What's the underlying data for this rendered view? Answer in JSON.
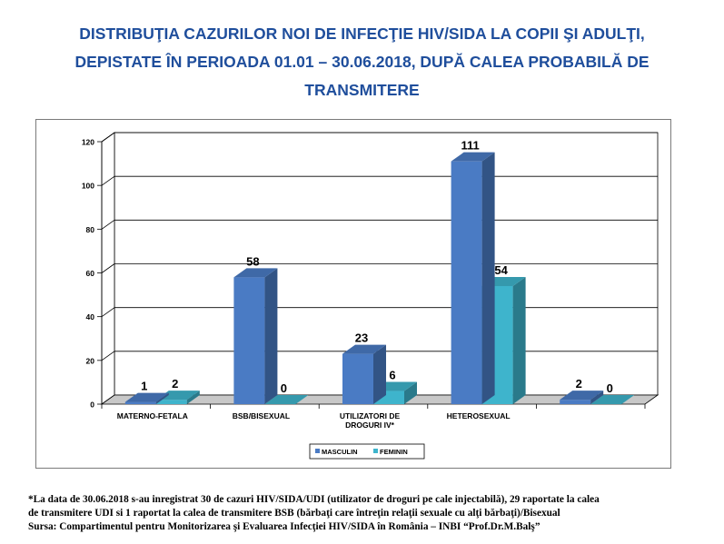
{
  "title_lines": [
    "DISTRIBUŢIA CAZURILOR NOI DE INFECŢIE HIV/SIDA LA COPII ŞI ADULŢI,",
    "DEPISTATE ÎN PERIOADA 01.01 – 30.06.2018, DUPĂ CALEA PROBABILĂ DE",
    "TRANSMITERE"
  ],
  "chart_data": {
    "type": "bar",
    "categories": [
      "MATERNO-FETALA",
      "BSB/BISEXUAL",
      "UTILIZATORI DE DROGURI IV*",
      "HETEROSEXUAL",
      ""
    ],
    "category_lines": [
      [
        "MATERNO-FETALA"
      ],
      [
        "BSB/BISEXUAL"
      ],
      [
        "UTILIZATORI DE",
        "DROGURI IV*"
      ],
      [
        "HETEROSEXUAL"
      ],
      [
        ""
      ]
    ],
    "series": [
      {
        "name": "MASCULIN",
        "values": [
          1,
          58,
          23,
          111,
          2
        ],
        "color": "#4a7bc4"
      },
      {
        "name": "FEMININ",
        "values": [
          2,
          0,
          6,
          54,
          0
        ],
        "color": "#3eb4cc"
      }
    ],
    "ylim": [
      0,
      120
    ],
    "yticks": [
      "0",
      "20",
      "40",
      "60",
      "80",
      "100",
      "120"
    ],
    "grid": true,
    "legend_position": "bottom",
    "three_d": true
  },
  "notes": [
    "*La data de 30.06.2018 s-au inregistrat 30 de cazuri HIV/SIDA/UDI  (utilizator de droguri pe cale injectabilă),  29 raportate la calea",
    "de transmitere UDI si 1 raportat la calea de transmitere BSB (bărbaţi care întreţin relaţii sexuale cu alţi  bărbaţi)/Bisexual",
    " Sursa: Compartimentul pentru Monitorizarea şi Evaluarea Infecţiei HIV/SIDA în România – INBI “Prof.Dr.M.Balş”"
  ]
}
